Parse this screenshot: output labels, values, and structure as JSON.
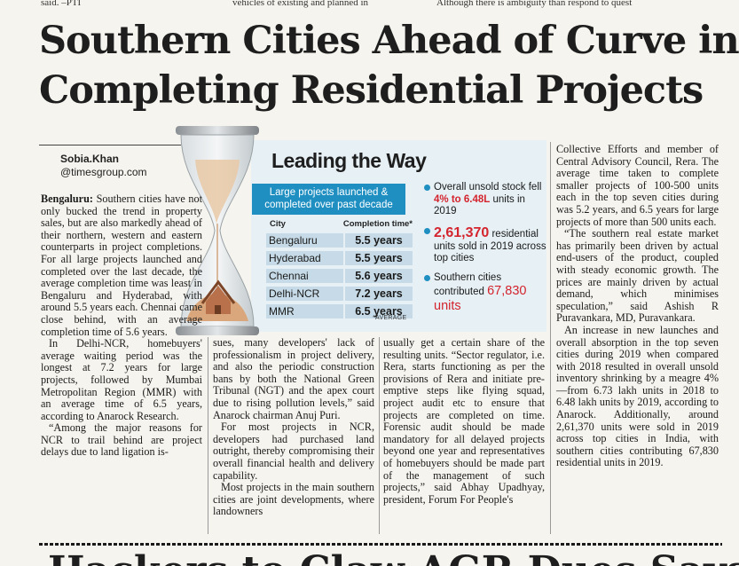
{
  "top_strip": {
    "left": "said. –PTI",
    "mid": "vehicles of existing and planned in",
    "right": "Although there is ambiguity than respond to quest"
  },
  "headline": {
    "line1": "Southern Cities Ahead of Curve in",
    "line2": "Completing Residential Projects"
  },
  "byline": {
    "name": "Sobia.Khan",
    "email": "@timesgroup.com"
  },
  "graphic": {
    "title": "Leading the Way",
    "subtitle": "Large projects launched & completed over past decade",
    "table": {
      "col_city": "City",
      "col_time": "Completion time*",
      "rows": [
        {
          "city": "Bengaluru",
          "time": "5.5 years"
        },
        {
          "city": "Hyderabad",
          "time": "5.5 years"
        },
        {
          "city": "Chennai",
          "time": "5.6 years"
        },
        {
          "city": "Delhi-NCR",
          "time": "7.2 years"
        },
        {
          "city": "MMR",
          "time": "6.5 years"
        }
      ],
      "note": "*AVERAGE"
    },
    "facts": [
      {
        "a": "Overall unsold stock fell ",
        "b": "4% to 6.48L",
        "c": " units in 2019"
      },
      {
        "a": "",
        "b": "2,61,370",
        "c": " residential units sold in 2019 across top cities"
      },
      {
        "a": "Southern cities contributed ",
        "b": "67,830 units",
        "c": ""
      }
    ]
  },
  "article": {
    "col1": [
      {
        "lead": "Bengaluru:",
        "text": " Southern cities have not only bucked the trend in property sales, but are also markedly ahead of their northern, western and eastern counterparts in project completions. For all large projects launched and completed over the last decade, the average completion time was least in Bengaluru and Hyderabad, with around 5.5 years each. Chennai came close behind, with an average completion time of 5.6 years."
      },
      {
        "lead": "",
        "text": "In Delhi-NCR, homebuyers' average waiting period was the longest at 7.2 years for large projects, followed by Mumbai Metropolitan Region (MMR) with an average time of 6.5 years, according to Anarock Research."
      },
      {
        "lead": "",
        "text": "“Among the major reasons for NCR to trail behind are project delays due to land ligation is-"
      }
    ],
    "col2": [
      "sues, many developers' lack of professionalism in project delivery, and also the periodic construction bans by both the National Green Tribunal (NGT) and the apex court due to rising pollution levels,” said Anarock chairman Anuj Puri.",
      "For most projects in NCR, developers had purchased land outright, thereby compromising their overall financial health and delivery capability.",
      "Most projects in the main southern cities are joint developments, where landowners"
    ],
    "col3": [
      "usually get a certain share of the resulting units. “Sector regulator, i.e. Rera, starts functioning as per the provisions of Rera and initiate pre-emptive steps like flying squad, project audit etc to ensure that projects are completed on time. Forensic audit should be made mandatory for all delayed projects beyond one year and representatives of homebuyers should be made part of the management of such projects,” said Abhay Upadhyay, president, Forum For People's"
    ],
    "col4": [
      "Collective Efforts and member of Central Advisory Council, Rera. The average time taken to complete smaller projects of 100-500 units each in the top seven cities during was 5.2 years, and 6.5 years for large projects of more than 500 units each.",
      "“The southern real estate market has primarily been driven by actual end-users of the product, coupled with steady economic growth. The prices are mainly driven by actual demand, which minimises speculation,” said Ashish R Puravankara, MD, Puravankara.",
      "An increase in new launches and overall absorption in the top seven cities during 2019 when compared with 2018 resulted in overall unsold inventory shrinking by a meagre 4% —from 6.73 lakh units in 2018 to 6.48 lakh units by 2019, according to Anarock. Additionally, around 2,61,370 units were sold in 2019 across top cities in India, with southern cities contributing 67,830 residential units in 2019."
    ]
  },
  "next_headline": "Hackers to Claw AGR Dues Says"
}
